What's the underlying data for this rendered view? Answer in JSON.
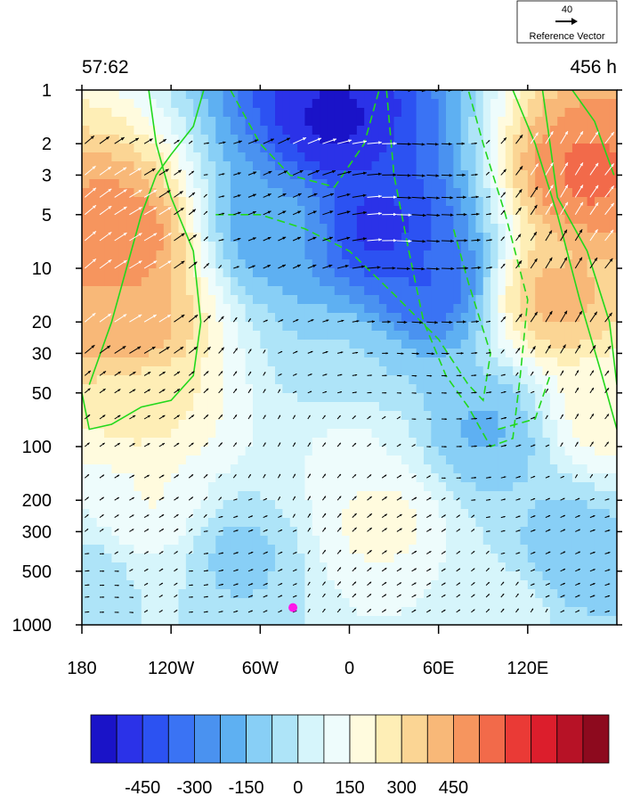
{
  "chart_data": {
    "type": "heatmap",
    "title_left": "57:62",
    "title_right": "456 h",
    "reference_vector": {
      "magnitude": "40",
      "label": "Reference Vector"
    },
    "x_axis": {
      "scale": "longitude",
      "range": [
        -180,
        180
      ],
      "ticks": [
        {
          "value": -180,
          "label": "180"
        },
        {
          "value": -120,
          "label": "120W"
        },
        {
          "value": -60,
          "label": "60W"
        },
        {
          "value": 0,
          "label": "0"
        },
        {
          "value": 60,
          "label": "60E"
        },
        {
          "value": 120,
          "label": "120E"
        }
      ]
    },
    "y_axis": {
      "scale": "log",
      "inverted": true,
      "range": [
        1,
        1000
      ],
      "ticks": [
        1,
        2,
        3,
        5,
        10,
        20,
        30,
        50,
        100,
        200,
        300,
        500,
        1000
      ]
    },
    "colorbar": {
      "levels": [
        -525,
        -450,
        -375,
        -300,
        -225,
        -150,
        -75,
        0,
        75,
        150,
        225,
        300,
        375,
        450,
        525
      ],
      "labels": [
        {
          "value": -450,
          "label": "-450"
        },
        {
          "value": -300,
          "label": "-300"
        },
        {
          "value": -150,
          "label": "-150"
        },
        {
          "value": 0,
          "label": "0"
        },
        {
          "value": 150,
          "label": "150"
        },
        {
          "value": 300,
          "label": "300"
        },
        {
          "value": 450,
          "label": "450"
        }
      ],
      "colors": [
        "#1a13c8",
        "#2b32e8",
        "#2c52f2",
        "#3a73f4",
        "#4a92f0",
        "#5eb0f2",
        "#88cff6",
        "#aee4f8",
        "#d6f5fb",
        "#eefcfc",
        "#fffbde",
        "#feeeb6",
        "#fbd594",
        "#f8b878",
        "#f6955e",
        "#f26a4a",
        "#ea3a36",
        "#dc1e2c",
        "#b71226",
        "#8d0a1e"
      ]
    },
    "field_centers": [
      {
        "lon": -155,
        "p": 7,
        "value": 520
      },
      {
        "lon": -150,
        "p": 20,
        "value": 440
      },
      {
        "lon": -140,
        "p": 60,
        "value": 260
      },
      {
        "lon": -135,
        "p": 200,
        "value": 160
      },
      {
        "lon": -150,
        "p": 300,
        "value": 90
      },
      {
        "lon": -170,
        "p": 500,
        "value": -60
      },
      {
        "lon": -10,
        "p": 1.5,
        "value": -540
      },
      {
        "lon": 20,
        "p": 6,
        "value": -480
      },
      {
        "lon": 50,
        "p": 12,
        "value": -380
      },
      {
        "lon": -50,
        "p": 6,
        "value": -200
      },
      {
        "lon": 0,
        "p": 35,
        "value": -70
      },
      {
        "lon": 90,
        "p": 80,
        "value": -160
      },
      {
        "lon": 160,
        "p": 3,
        "value": 540
      },
      {
        "lon": 140,
        "p": 15,
        "value": 400
      },
      {
        "lon": 175,
        "p": 60,
        "value": 200
      },
      {
        "lon": 20,
        "p": 250,
        "value": 180
      },
      {
        "lon": 0,
        "p": 100,
        "value": 90
      },
      {
        "lon": -75,
        "p": 400,
        "value": -100
      },
      {
        "lon": 150,
        "p": 400,
        "value": -130
      },
      {
        "lon": 100,
        "p": 900,
        "value": 60
      }
    ],
    "marker": {
      "lon": -38,
      "p": 800,
      "color": "#ff17e8"
    },
    "contour_color": "#22d81c"
  }
}
